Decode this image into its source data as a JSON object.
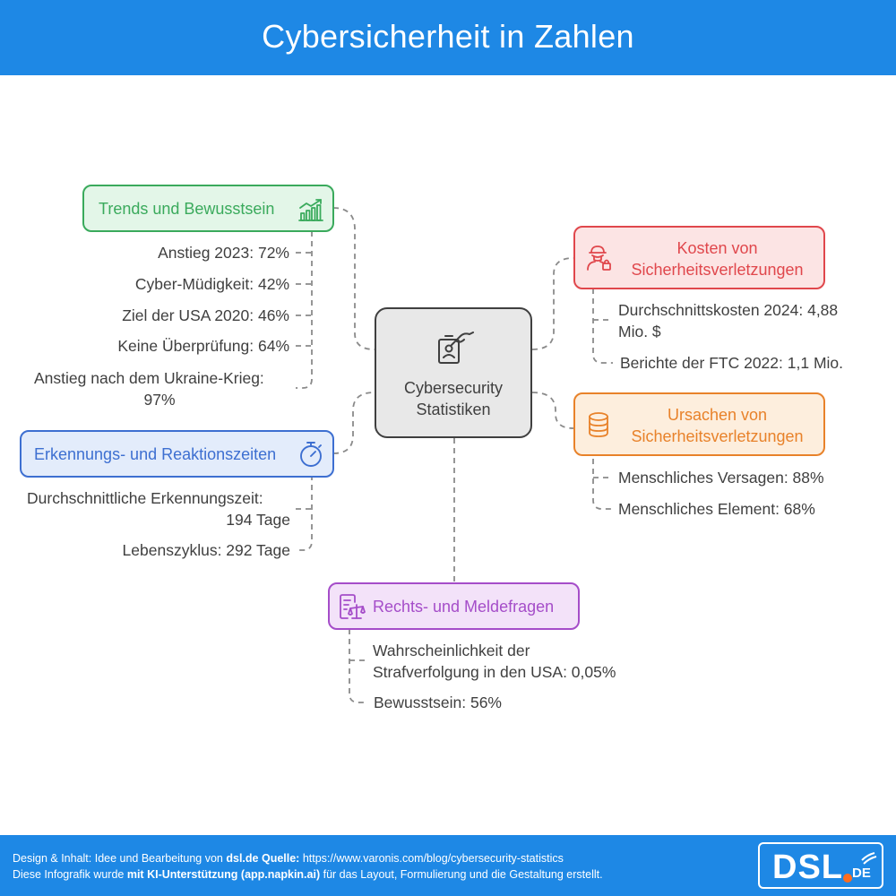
{
  "header": {
    "title": "Cybersicherheit in Zahlen"
  },
  "center": {
    "line1": "Cybersecurity",
    "line2": "Statistiken"
  },
  "trends": {
    "title": "Trends und Bewusstsein",
    "items": [
      "Anstieg 2023: 72%",
      "Cyber-Müdigkeit: 42%",
      "Ziel der USA 2020: 46%",
      "Keine Überprüfung: 64%",
      "Anstieg nach dem Ukraine-Krieg:",
      "97%"
    ]
  },
  "detection": {
    "title": "Erkennungs- und Reaktionszeiten",
    "items": [
      "Durchschnittliche Erkennungszeit:",
      "194 Tage",
      "Lebenszyklus: 292 Tage"
    ]
  },
  "costs": {
    "title_line1": "Kosten von",
    "title_line2": "Sicherheitsverletzungen",
    "items": [
      "Durchschnittskosten 2024: 4,88",
      "Mio. $",
      "Berichte der FTC 2022: 1,1 Mio."
    ]
  },
  "causes": {
    "title_line1": "Ursachen von",
    "title_line2": "Sicherheitsverletzungen",
    "items": [
      "Menschliches Versagen: 88%",
      "Menschliches Element: 68%"
    ]
  },
  "legal": {
    "title": "Rechts- und Meldefragen",
    "items": [
      "Wahrscheinlichkeit der",
      "Strafverfolgung in den USA: 0,05%",
      "Bewusstsein: 56%"
    ]
  },
  "footer": {
    "line1_prefix": "Design & Inhalt: Idee und Bearbeitung von ",
    "line1_bold": "dsl.de Quelle:",
    "line1_suffix": " https://www.varonis.com/blog/cybersecurity-statistics",
    "line2_prefix": "Diese Infografik wurde ",
    "line2_bold": "mit KI-Unterstützung (app.napkin.ai)",
    "line2_suffix": " für das Layout, Formulierung und die Gestaltung erstellt.",
    "logo_main": "DSL",
    "logo_suffix": "DE"
  },
  "colors": {
    "header": "#1e88e5",
    "trends": "#3aaa5c",
    "detection": "#3d6fd1",
    "costs": "#e0474c",
    "causes": "#e8822a",
    "legal": "#a54dc9",
    "center": "#3f3f3f"
  },
  "icons": {
    "trends": "growth-chart-icon",
    "detection": "stopwatch-icon",
    "costs": "hacker-icon",
    "causes": "coin-stack-icon",
    "legal": "legal-document-icon",
    "center": "id-badge-hand-icon"
  }
}
